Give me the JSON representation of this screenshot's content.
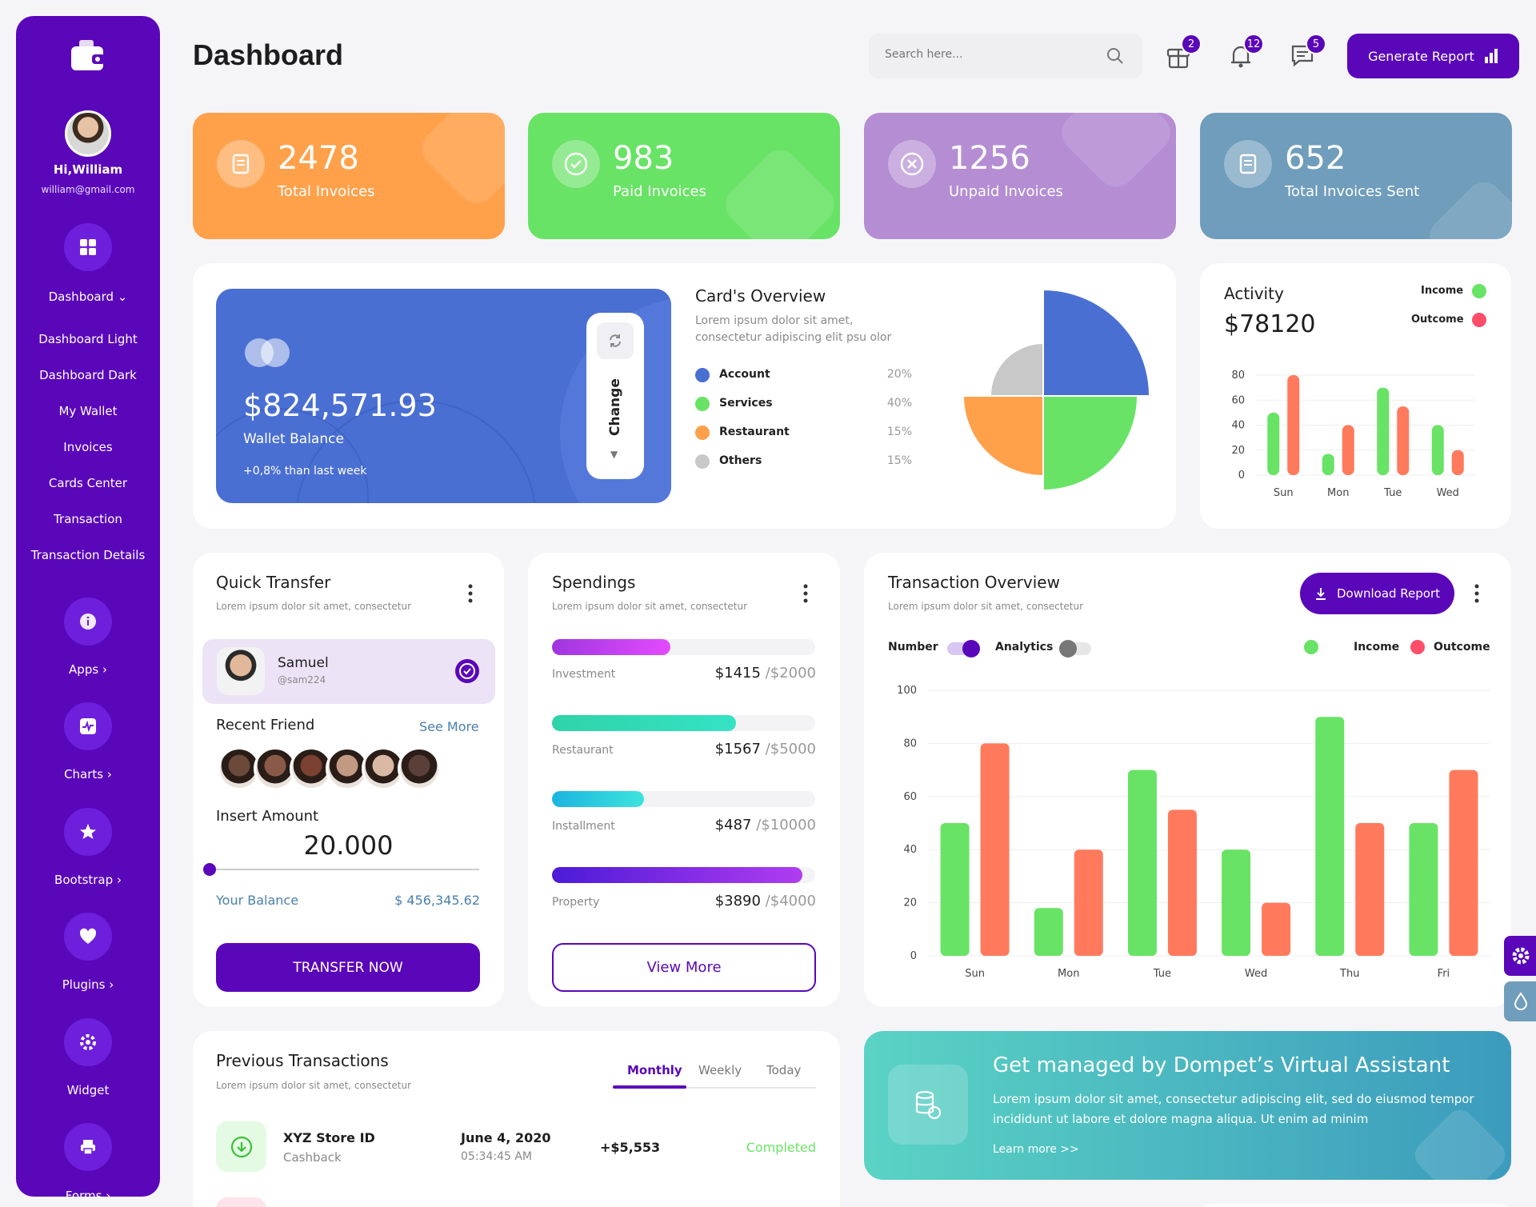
{
  "sidebar": {
    "greeting": "Hi,William",
    "email": "william@gmail.com",
    "dashboard_label": "Dashboard",
    "sub_items": [
      "Dashboard Light",
      "Dashboard Dark",
      "My Wallet",
      "Invoices",
      "Cards Center",
      "Transaction",
      "Transaction Details"
    ],
    "groups": [
      {
        "label": "Apps",
        "icon": "info-icon"
      },
      {
        "label": "Charts",
        "icon": "pulse-icon"
      },
      {
        "label": "Bootstrap",
        "icon": "star-icon"
      },
      {
        "label": "Plugins",
        "icon": "heart-icon"
      },
      {
        "label": "Widget",
        "icon": "settings-icon"
      },
      {
        "label": "Forms",
        "icon": "printer-icon"
      }
    ]
  },
  "header": {
    "title": "Dashboard",
    "search_placeholder": "Search here...",
    "gift_count": "2",
    "bell_count": "12",
    "chat_count": "5",
    "generate_label": "Generate Report"
  },
  "stats": [
    {
      "value": "2478",
      "label": "Total Invoices",
      "color": "#ffa14b"
    },
    {
      "value": "983",
      "label": "Paid Invoices",
      "color": "#68e365"
    },
    {
      "value": "1256",
      "label": "Unpaid Invoices",
      "color": "#b48dd3"
    },
    {
      "value": "652",
      "label": "Total Invoices Sent",
      "color": "#6f9dbb"
    }
  ],
  "wallet": {
    "balance": "$824,571.93",
    "label": "Wallet Balance",
    "change": "+0,8% than last week",
    "change_btn": "Change"
  },
  "cards_overview": {
    "title": "Card's Overview",
    "desc1": "Lorem ipsum dolor sit amet,",
    "desc2": "consectetur adipiscing elit psu olor",
    "items": [
      {
        "name": "Account",
        "pct": "20%",
        "color": "#4a6fd3"
      },
      {
        "name": "Services",
        "pct": "40%",
        "color": "#68e365"
      },
      {
        "name": "Restaurant",
        "pct": "15%",
        "color": "#ffa14b"
      },
      {
        "name": "Others",
        "pct": "15%",
        "color": "#c8c8c8"
      }
    ]
  },
  "activity": {
    "title": "Activity",
    "amount": "$78120",
    "income_label": "Income",
    "outcome_label": "Outcome",
    "chart_data": {
      "type": "bar",
      "categories": [
        "Sun",
        "Mon",
        "Tue",
        "Wed"
      ],
      "series": [
        {
          "name": "Income",
          "values": [
            50,
            17,
            70,
            40
          ]
        },
        {
          "name": "Outcome",
          "values": [
            80,
            40,
            55,
            20
          ]
        }
      ],
      "yticks": [
        "80",
        "60",
        "40",
        "20",
        "0"
      ],
      "ylim": [
        0,
        80
      ]
    }
  },
  "quick_transfer": {
    "title": "Quick Transfer",
    "desc": "Lorem ipsum dolor sit amet, consectetur",
    "user_name": "Samuel",
    "user_handle": "@sam224",
    "recent_label": "Recent Friend",
    "see_more": "See More",
    "insert_label": "Insert Amount",
    "amount": "20.000",
    "slider_level": 0,
    "balance_label": "Your Balance",
    "balance_value": "$ 456,345.62",
    "button": "TRANSFER NOW"
  },
  "spendings": {
    "title": "Spendings",
    "desc": "Lorem ipsum dolor sit amet, consectetur",
    "items": [
      {
        "name": "Investment",
        "value": "$1415",
        "total": "/$2000",
        "fill": 0.45,
        "from": "#9f36df",
        "to": "#e34bff"
      },
      {
        "name": "Restaurant",
        "value": "$1567",
        "total": "/$5000",
        "fill": 0.7,
        "from": "#2fd3a7",
        "to": "#34e3c4"
      },
      {
        "name": "Installment",
        "value": "$487",
        "total": "/$10000",
        "fill": 0.35,
        "from": "#1bb5e0",
        "to": "#3ee3dc"
      },
      {
        "name": "Property",
        "value": "$3890",
        "total": "/$4000",
        "fill": 0.95,
        "from": "#4b1bd6",
        "to": "#b13cf0"
      }
    ],
    "button": "View More"
  },
  "transaction_overview": {
    "title": "Transaction Overview",
    "desc": "Lorem ipsum dolor sit amet, consectetur",
    "download": "Download Report",
    "number_label": "Number",
    "analytics_label": "Analytics",
    "income_label": "Income",
    "outcome_label": "Outcome",
    "chart_data": {
      "type": "bar",
      "categories": [
        "Sun",
        "Mon",
        "Tue",
        "Wed",
        "Thu",
        "Fri"
      ],
      "series": [
        {
          "name": "Income",
          "values": [
            50,
            18,
            70,
            40,
            90,
            50
          ]
        },
        {
          "name": "Outcome",
          "values": [
            80,
            40,
            55,
            20,
            50,
            70
          ]
        }
      ],
      "yticks": [
        "100",
        "80",
        "60",
        "40",
        "20",
        "0"
      ],
      "ylim": [
        0,
        100
      ]
    }
  },
  "previous": {
    "title": "Previous Transactions",
    "desc": "Lorem ipsum dolor sit amet, consectetur",
    "tabs": [
      "Monthly",
      "Weekly",
      "Today"
    ],
    "row": {
      "name": "XYZ Store ID",
      "type": "Cashback",
      "date": "June 4, 2020",
      "time": "05:34:45 AM",
      "amount": "+$5,553",
      "status": "Completed"
    }
  },
  "assistant": {
    "title": "Get managed by Dompet’s Virtual Assistant",
    "body1": "Lorem ipsum dolor sit amet, consectetur adipiscing elit, sed do eiusmod tempor",
    "body2": "incididunt ut labore et dolore magna aliqua. Ut enim ad minim",
    "link": "Learn more >>"
  }
}
